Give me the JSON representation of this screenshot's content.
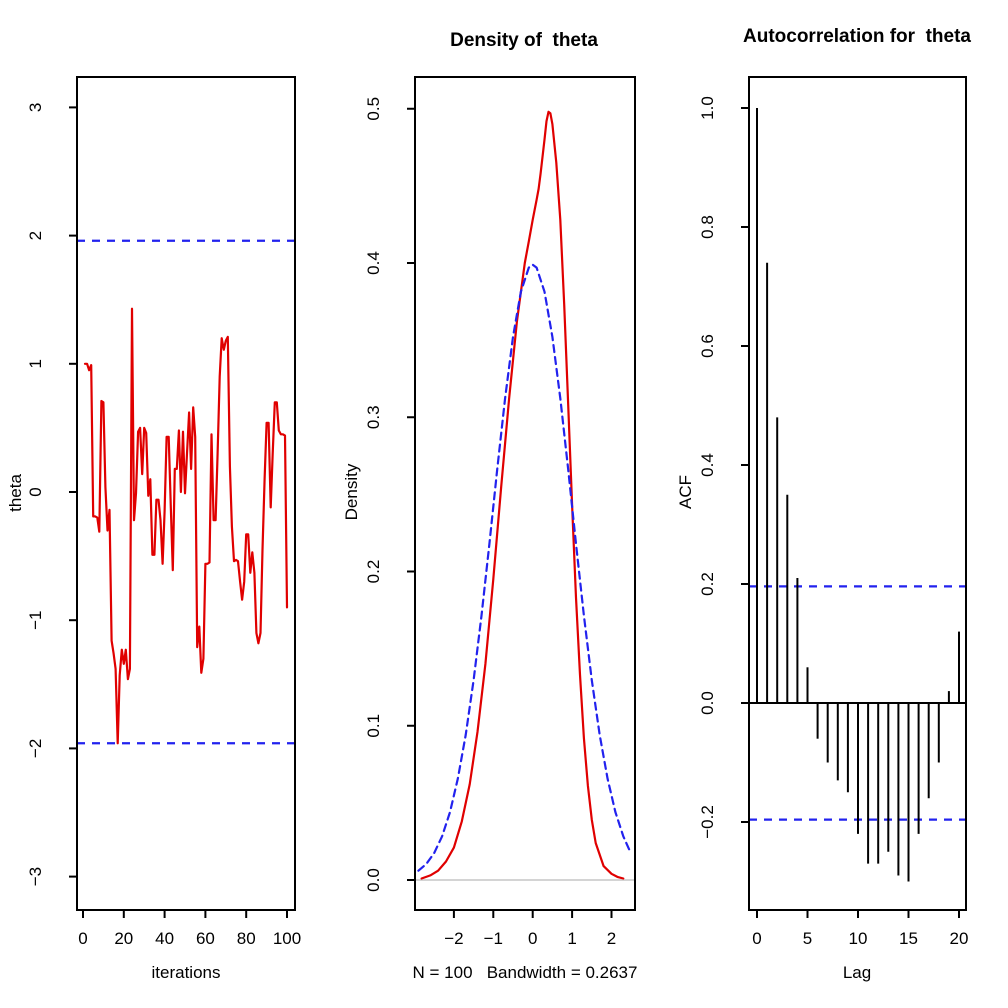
{
  "colors": {
    "series_red": "#e00000",
    "band_blue": "#2222ee",
    "axis_black": "#000000",
    "baseline_gray": "#d4d4d4",
    "background": "#ffffff"
  },
  "chart_data": [
    {
      "type": "line",
      "title": "",
      "xlabel": "iterations",
      "ylabel": "theta",
      "x_ticks": [
        {
          "v": 0,
          "label": "0"
        },
        {
          "v": 20,
          "label": "20"
        },
        {
          "v": 40,
          "label": "40"
        },
        {
          "v": 60,
          "label": "60"
        },
        {
          "v": 80,
          "label": "80"
        },
        {
          "v": 100,
          "label": "100"
        }
      ],
      "y_ticks": [
        {
          "v": 3,
          "label": "3"
        },
        {
          "v": 2,
          "label": "2"
        },
        {
          "v": 1,
          "label": "1"
        },
        {
          "v": 0,
          "label": "0"
        },
        {
          "v": -1,
          "label": "−1"
        },
        {
          "v": -2,
          "label": "−2"
        },
        {
          "v": -3,
          "label": "−3"
        }
      ],
      "xlim": [
        -2,
        103
      ],
      "ylim": [
        -3.2,
        3.2
      ],
      "grid": false,
      "hlines_dashed": [
        1.96,
        -1.96
      ],
      "series": [
        {
          "name": "theta-trace",
          "color_key": "series_red",
          "x_start": 1,
          "values": [
            1.0,
            1.0,
            0.95,
            0.99,
            -0.19,
            -0.19,
            -0.2,
            -0.31,
            0.71,
            0.7,
            0.04,
            -0.3,
            -0.14,
            -1.16,
            -1.26,
            -1.38,
            -1.96,
            -1.43,
            -1.23,
            -1.34,
            -1.23,
            -1.46,
            -1.38,
            1.43,
            -0.22,
            -0.01,
            0.47,
            0.5,
            0.14,
            0.5,
            0.46,
            -0.03,
            0.1,
            -0.49,
            -0.49,
            -0.06,
            -0.06,
            -0.22,
            -0.56,
            -0.15,
            0.43,
            0.43,
            -0.09,
            -0.61,
            0.18,
            0.18,
            0.48,
            0.0,
            0.47,
            -0.01,
            0.3,
            0.62,
            0.18,
            0.66,
            0.43,
            -1.21,
            -1.05,
            -1.41,
            -1.3,
            -0.56,
            -0.56,
            -0.55,
            0.45,
            -0.22,
            -0.22,
            0.3,
            0.9,
            1.2,
            1.11,
            1.18,
            1.21,
            0.2,
            -0.27,
            -0.54,
            -0.53,
            -0.54,
            -0.7,
            -0.84,
            -0.7,
            -0.33,
            -0.33,
            -0.63,
            -0.47,
            -0.63,
            -1.1,
            -1.18,
            -1.1,
            -0.45,
            0.1,
            0.54,
            0.54,
            -0.12,
            0.3,
            0.7,
            0.7,
            0.48,
            0.45,
            0.45,
            0.44,
            -0.9
          ]
        }
      ]
    },
    {
      "type": "line",
      "title": "Density of  theta",
      "xlabel": "N = 100   Bandwidth = 0.2637",
      "ylabel": "Density",
      "x_ticks": [
        {
          "v": -2,
          "label": "−2"
        },
        {
          "v": -1,
          "label": "−1"
        },
        {
          "v": 0,
          "label": "0"
        },
        {
          "v": 1,
          "label": "1"
        },
        {
          "v": 2,
          "label": "2"
        }
      ],
      "y_ticks": [
        {
          "v": 0.5,
          "label": "0.5"
        },
        {
          "v": 0.4,
          "label": "0.4"
        },
        {
          "v": 0.3,
          "label": "0.3"
        },
        {
          "v": 0.2,
          "label": "0.2"
        },
        {
          "v": 0.1,
          "label": "0.1"
        },
        {
          "v": 0.0,
          "label": "0.0"
        }
      ],
      "xlim": [
        -3.0,
        2.6
      ],
      "ylim": [
        0,
        0.52
      ],
      "grid": false,
      "baseline_y": 0.0,
      "series": [
        {
          "name": "kernel-density",
          "style": "solid",
          "color_key": "series_red",
          "points": [
            [
              -2.82,
              0.001
            ],
            [
              -2.6,
              0.003
            ],
            [
              -2.4,
              0.006
            ],
            [
              -2.2,
              0.012
            ],
            [
              -2.0,
              0.021
            ],
            [
              -1.8,
              0.038
            ],
            [
              -1.6,
              0.062
            ],
            [
              -1.4,
              0.096
            ],
            [
              -1.2,
              0.14
            ],
            [
              -1.0,
              0.195
            ],
            [
              -0.8,
              0.255
            ],
            [
              -0.6,
              0.312
            ],
            [
              -0.4,
              0.362
            ],
            [
              -0.2,
              0.4
            ],
            [
              -0.1,
              0.414
            ],
            [
              0.0,
              0.428
            ],
            [
              0.1,
              0.441
            ],
            [
              0.15,
              0.448
            ],
            [
              0.2,
              0.458
            ],
            [
              0.3,
              0.48
            ],
            [
              0.35,
              0.492
            ],
            [
              0.4,
              0.498
            ],
            [
              0.45,
              0.497
            ],
            [
              0.5,
              0.49
            ],
            [
              0.6,
              0.465
            ],
            [
              0.7,
              0.428
            ],
            [
              0.8,
              0.373
            ],
            [
              0.9,
              0.308
            ],
            [
              1.0,
              0.243
            ],
            [
              1.1,
              0.183
            ],
            [
              1.2,
              0.133
            ],
            [
              1.3,
              0.092
            ],
            [
              1.4,
              0.061
            ],
            [
              1.5,
              0.039
            ],
            [
              1.6,
              0.024
            ],
            [
              1.8,
              0.009
            ],
            [
              2.0,
              0.004
            ],
            [
              2.15,
              0.002
            ],
            [
              2.3,
              0.001
            ]
          ]
        },
        {
          "name": "normal-reference",
          "style": "dashed",
          "color_key": "band_blue",
          "points": [
            [
              -2.9,
              0.006
            ],
            [
              -2.7,
              0.0104
            ],
            [
              -2.5,
              0.0175
            ],
            [
              -2.3,
              0.0283
            ],
            [
              -2.1,
              0.044
            ],
            [
              -1.9,
              0.0656
            ],
            [
              -1.7,
              0.094
            ],
            [
              -1.5,
              0.1295
            ],
            [
              -1.3,
              0.1714
            ],
            [
              -1.1,
              0.2179
            ],
            [
              -0.9,
              0.2661
            ],
            [
              -0.7,
              0.3123
            ],
            [
              -0.5,
              0.3521
            ],
            [
              -0.3,
              0.3814
            ],
            [
              -0.1,
              0.397
            ],
            [
              0.0,
              0.3989
            ],
            [
              0.1,
              0.397
            ],
            [
              0.3,
              0.3814
            ],
            [
              0.5,
              0.3521
            ],
            [
              0.7,
              0.3123
            ],
            [
              0.9,
              0.2661
            ],
            [
              1.1,
              0.2179
            ],
            [
              1.3,
              0.1714
            ],
            [
              1.5,
              0.1295
            ],
            [
              1.7,
              0.094
            ],
            [
              1.9,
              0.0656
            ],
            [
              2.1,
              0.044
            ],
            [
              2.3,
              0.0283
            ],
            [
              2.45,
              0.0198
            ]
          ]
        }
      ]
    },
    {
      "type": "bar",
      "title": "Autocorrelation for  theta",
      "xlabel": "Lag",
      "ylabel": "ACF",
      "x_ticks": [
        {
          "v": 0,
          "label": "0"
        },
        {
          "v": 5,
          "label": "5"
        },
        {
          "v": 10,
          "label": "10"
        },
        {
          "v": 15,
          "label": "15"
        },
        {
          "v": 20,
          "label": "20"
        }
      ],
      "y_ticks": [
        {
          "v": 1.0,
          "label": "1.0"
        },
        {
          "v": 0.8,
          "label": "0.8"
        },
        {
          "v": 0.6,
          "label": "0.6"
        },
        {
          "v": 0.4,
          "label": "0.4"
        },
        {
          "v": 0.2,
          "label": "0.2"
        },
        {
          "v": 0.0,
          "label": "0.0"
        },
        {
          "v": -0.2,
          "label": "−0.2"
        }
      ],
      "xlim": [
        -0.8,
        21
      ],
      "ylim": [
        -0.32,
        1.04
      ],
      "grid": false,
      "lags": [
        0,
        1,
        2,
        3,
        4,
        5,
        6,
        7,
        8,
        9,
        10,
        11,
        12,
        13,
        14,
        15,
        16,
        17,
        18,
        19,
        20
      ],
      "values": [
        1.0,
        0.74,
        0.48,
        0.35,
        0.21,
        0.06,
        -0.06,
        -0.1,
        -0.13,
        -0.15,
        -0.22,
        -0.27,
        -0.27,
        -0.25,
        -0.29,
        -0.3,
        -0.22,
        -0.16,
        -0.1,
        0.02,
        0.12
      ],
      "conf_bands": [
        0.196,
        -0.196
      ],
      "zero_line": 0.0
    }
  ]
}
